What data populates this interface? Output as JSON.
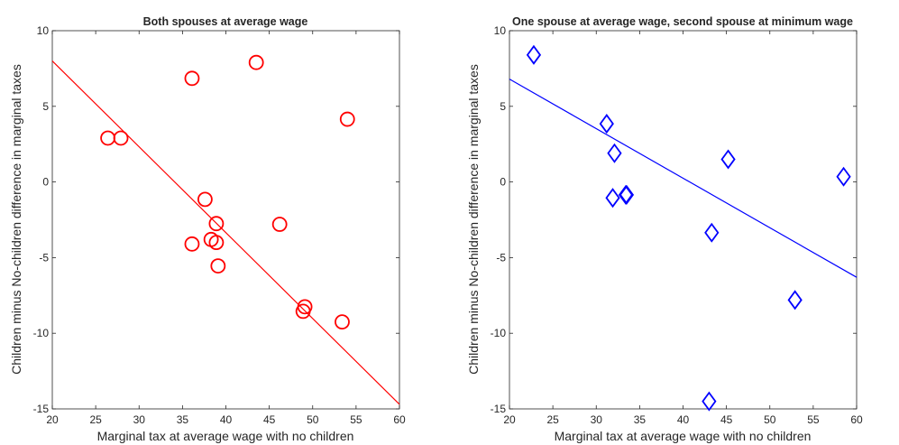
{
  "chart_data": [
    {
      "type": "scatter",
      "title": "Both spouses at average wage",
      "xlabel": "Marginal tax at average wage with no children",
      "ylabel": "Children minus No-children difference in marginal taxes",
      "xlim": [
        20,
        60
      ],
      "ylim": [
        -15,
        10
      ],
      "xticks": [
        "20",
        "25",
        "30",
        "35",
        "40",
        "45",
        "50",
        "55",
        "60"
      ],
      "yticks": [
        "10",
        "5",
        "0",
        "-5",
        "-10",
        "-15"
      ],
      "grid": false,
      "marker": "circle",
      "color": "#ff0000",
      "points": [
        {
          "x": 26.4,
          "y": 2.9
        },
        {
          "x": 27.9,
          "y": 2.9
        },
        {
          "x": 36.1,
          "y": 6.85
        },
        {
          "x": 43.5,
          "y": 7.9
        },
        {
          "x": 54.0,
          "y": 4.15
        },
        {
          "x": 37.6,
          "y": -1.15
        },
        {
          "x": 38.9,
          "y": -2.75
        },
        {
          "x": 46.2,
          "y": -2.8
        },
        {
          "x": 36.1,
          "y": -4.1
        },
        {
          "x": 38.3,
          "y": -3.8
        },
        {
          "x": 38.9,
          "y": -4.0
        },
        {
          "x": 39.1,
          "y": -5.55
        },
        {
          "x": 49.1,
          "y": -8.25
        },
        {
          "x": 48.9,
          "y": -8.55
        },
        {
          "x": 53.4,
          "y": -9.25
        }
      ],
      "fit_line": {
        "x": [
          20,
          60
        ],
        "y": [
          8.0,
          -14.7
        ]
      }
    },
    {
      "type": "scatter",
      "title": "One spouse at average wage, second spouse at minimum wage",
      "xlabel": "Marginal tax at average wage with no children",
      "ylabel": "Children minus No-children difference in marginal taxes",
      "xlim": [
        20,
        60
      ],
      "ylim": [
        -15,
        10
      ],
      "xticks": [
        "20",
        "25",
        "30",
        "35",
        "40",
        "45",
        "50",
        "55",
        "60"
      ],
      "yticks": [
        "10",
        "5",
        "0",
        "-5",
        "-10",
        "-15"
      ],
      "grid": false,
      "marker": "diamond",
      "color": "#0000ff",
      "points": [
        {
          "x": 22.8,
          "y": 8.4
        },
        {
          "x": 31.2,
          "y": 3.85
        },
        {
          "x": 32.1,
          "y": 1.9
        },
        {
          "x": 45.2,
          "y": 1.5
        },
        {
          "x": 58.5,
          "y": 0.35
        },
        {
          "x": 31.9,
          "y": -1.05
        },
        {
          "x": 33.4,
          "y": -0.85
        },
        {
          "x": 33.5,
          "y": -0.85
        },
        {
          "x": 43.3,
          "y": -3.35
        },
        {
          "x": 52.9,
          "y": -7.8
        },
        {
          "x": 43.0,
          "y": -14.5
        }
      ],
      "fit_line": {
        "x": [
          20,
          60
        ],
        "y": [
          6.8,
          -6.3
        ]
      }
    }
  ]
}
